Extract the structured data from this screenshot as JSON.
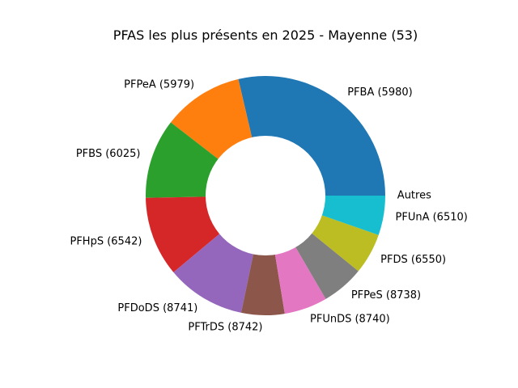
{
  "chart_data": {
    "type": "pie",
    "variant": "donut",
    "title": "PFAS les plus présents en 2025 - Mayenne (53)",
    "categories": [
      "Autres",
      "PFBA (5980)",
      "PFPeA (5979)",
      "PFBS (6025)",
      "PFHpS (6542)",
      "PFDoDS (8741)",
      "PFTrDS (8742)",
      "PFUnDS (8740)",
      "PFPeS (8738)",
      "PFDS (6550)",
      "PFUnA (6510)"
    ],
    "values": [
      0.0,
      29.5,
      11.2,
      11.1,
      11.1,
      11.0,
      6.0,
      6.0,
      5.9,
      5.7,
      5.5
    ],
    "colors": [
      "#808080",
      "#1f77b4",
      "#ff7f0e",
      "#2ca02c",
      "#d62728",
      "#9467bd",
      "#8c564b",
      "#e377c2",
      "#7f7f7f",
      "#bcbd22",
      "#17becf"
    ],
    "start_angle_deg": 0,
    "direction": "counterclockwise",
    "hole_ratio": 0.5,
    "legend": "none"
  }
}
